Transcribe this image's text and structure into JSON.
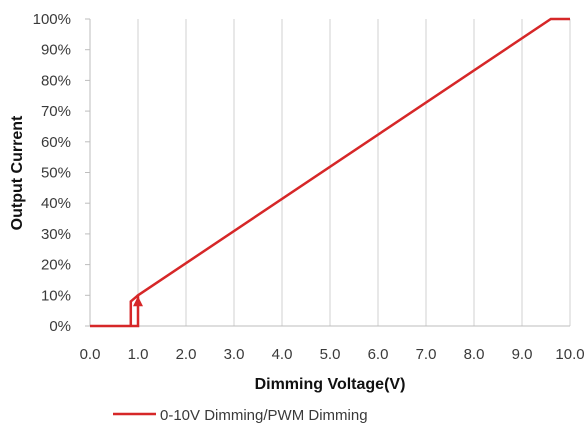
{
  "chart_data": {
    "type": "line",
    "xlabel": "Dimming Voltage(V)",
    "ylabel": "Output Current",
    "xlim": [
      0,
      10
    ],
    "ylim": [
      0,
      100
    ],
    "x_ticks": [
      "0.0",
      "1.0",
      "2.0",
      "3.0",
      "4.0",
      "5.0",
      "6.0",
      "7.0",
      "8.0",
      "9.0",
      "10.0"
    ],
    "y_ticks": [
      "0%",
      "10%",
      "20%",
      "30%",
      "40%",
      "50%",
      "60%",
      "70%",
      "80%",
      "90%",
      "100%"
    ],
    "grid": "vertical",
    "legend_position": "bottom",
    "series": [
      {
        "name": "0-10V Dimming/PWM Dimming",
        "color": "#d62728",
        "points": [
          [
            0.0,
            0
          ],
          [
            1.0,
            0
          ],
          [
            1.0,
            10
          ],
          [
            9.6,
            100
          ],
          [
            10.0,
            100
          ]
        ],
        "hysteresis_points": [
          [
            0.85,
            0
          ],
          [
            0.85,
            8
          ],
          [
            1.0,
            10
          ]
        ],
        "hysteresis_arrow": "up"
      }
    ]
  }
}
